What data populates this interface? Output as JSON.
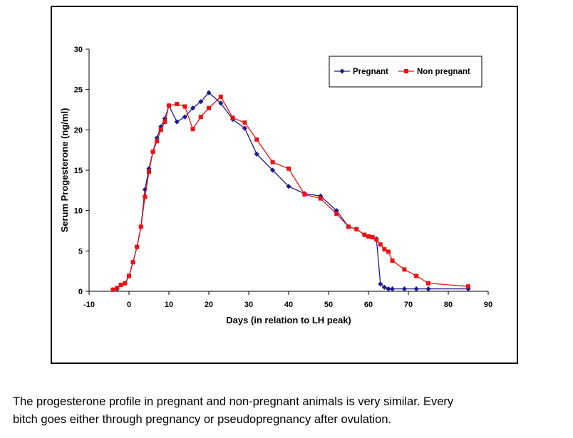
{
  "chart_data": {
    "type": "line",
    "title": "",
    "xlabel": "Days (in relation to LH peak)",
    "ylabel": "Serum Progesterone (ng/ml)",
    "xlim": [
      -10,
      90
    ],
    "ylim": [
      0,
      30
    ],
    "xticks": [
      -10,
      0,
      10,
      20,
      30,
      40,
      50,
      60,
      70,
      80,
      90
    ],
    "yticks": [
      0,
      5,
      10,
      15,
      20,
      25,
      30
    ],
    "grid": false,
    "legend_position": "top-right",
    "series": [
      {
        "name": "Pregnant",
        "color": "#1c1c8c",
        "marker": "diamond",
        "points": [
          [
            -4,
            0.2
          ],
          [
            -3,
            0.3
          ],
          [
            -2,
            0.8
          ],
          [
            -1,
            1.0
          ],
          [
            0,
            1.9
          ],
          [
            1,
            3.6
          ],
          [
            2,
            5.5
          ],
          [
            3,
            8.0
          ],
          [
            4,
            12.6
          ],
          [
            5,
            15.2
          ],
          [
            6,
            17.3
          ],
          [
            7,
            19.0
          ],
          [
            8,
            20.4
          ],
          [
            9,
            21.4
          ],
          [
            10,
            23.0
          ],
          [
            12,
            21.0
          ],
          [
            14,
            21.6
          ],
          [
            16,
            22.7
          ],
          [
            18,
            23.5
          ],
          [
            20,
            24.6
          ],
          [
            23,
            23.3
          ],
          [
            26,
            21.3
          ],
          [
            29,
            20.2
          ],
          [
            32,
            17.0
          ],
          [
            36,
            15.0
          ],
          [
            40,
            13.0
          ],
          [
            44,
            12.1
          ],
          [
            48,
            11.8
          ],
          [
            52,
            10.0
          ],
          [
            55,
            8.0
          ],
          [
            57,
            7.7
          ],
          [
            59,
            7.0
          ],
          [
            60,
            6.8
          ],
          [
            61,
            6.7
          ],
          [
            62,
            6.5
          ],
          [
            63,
            0.9
          ],
          [
            64,
            0.5
          ],
          [
            65,
            0.3
          ],
          [
            66,
            0.3
          ],
          [
            69,
            0.3
          ],
          [
            72,
            0.3
          ],
          [
            75,
            0.3
          ],
          [
            85,
            0.3
          ]
        ]
      },
      {
        "name": "Non pregnant",
        "color": "#ee1111",
        "marker": "square",
        "points": [
          [
            -4,
            0.2
          ],
          [
            -3,
            0.4
          ],
          [
            -2,
            0.8
          ],
          [
            -1,
            1.0
          ],
          [
            0,
            1.9
          ],
          [
            1,
            3.6
          ],
          [
            2,
            5.5
          ],
          [
            3,
            8.0
          ],
          [
            4,
            11.7
          ],
          [
            5,
            14.8
          ],
          [
            6,
            17.3
          ],
          [
            7,
            18.6
          ],
          [
            8,
            20.0
          ],
          [
            9,
            21.0
          ],
          [
            10,
            23.0
          ],
          [
            12,
            23.2
          ],
          [
            14,
            22.9
          ],
          [
            16,
            20.1
          ],
          [
            18,
            21.6
          ],
          [
            20,
            22.7
          ],
          [
            23,
            24.1
          ],
          [
            26,
            21.5
          ],
          [
            29,
            20.9
          ],
          [
            32,
            18.8
          ],
          [
            36,
            16.0
          ],
          [
            40,
            15.2
          ],
          [
            44,
            12.0
          ],
          [
            48,
            11.5
          ],
          [
            52,
            9.6
          ],
          [
            55,
            8.0
          ],
          [
            57,
            7.7
          ],
          [
            59,
            7.0
          ],
          [
            60,
            6.8
          ],
          [
            61,
            6.7
          ],
          [
            62,
            6.4
          ],
          [
            63,
            5.8
          ],
          [
            64,
            5.2
          ],
          [
            65,
            4.9
          ],
          [
            66,
            3.8
          ],
          [
            69,
            2.7
          ],
          [
            72,
            1.9
          ],
          [
            75,
            1.0
          ],
          [
            85,
            0.6
          ]
        ]
      }
    ]
  },
  "caption": {
    "line1": "The progesterone profile in pregnant and non-pregnant animals is very similar. Every",
    "line2": "bitch goes either through pregnancy or pseudopregnancy after ovulation."
  }
}
